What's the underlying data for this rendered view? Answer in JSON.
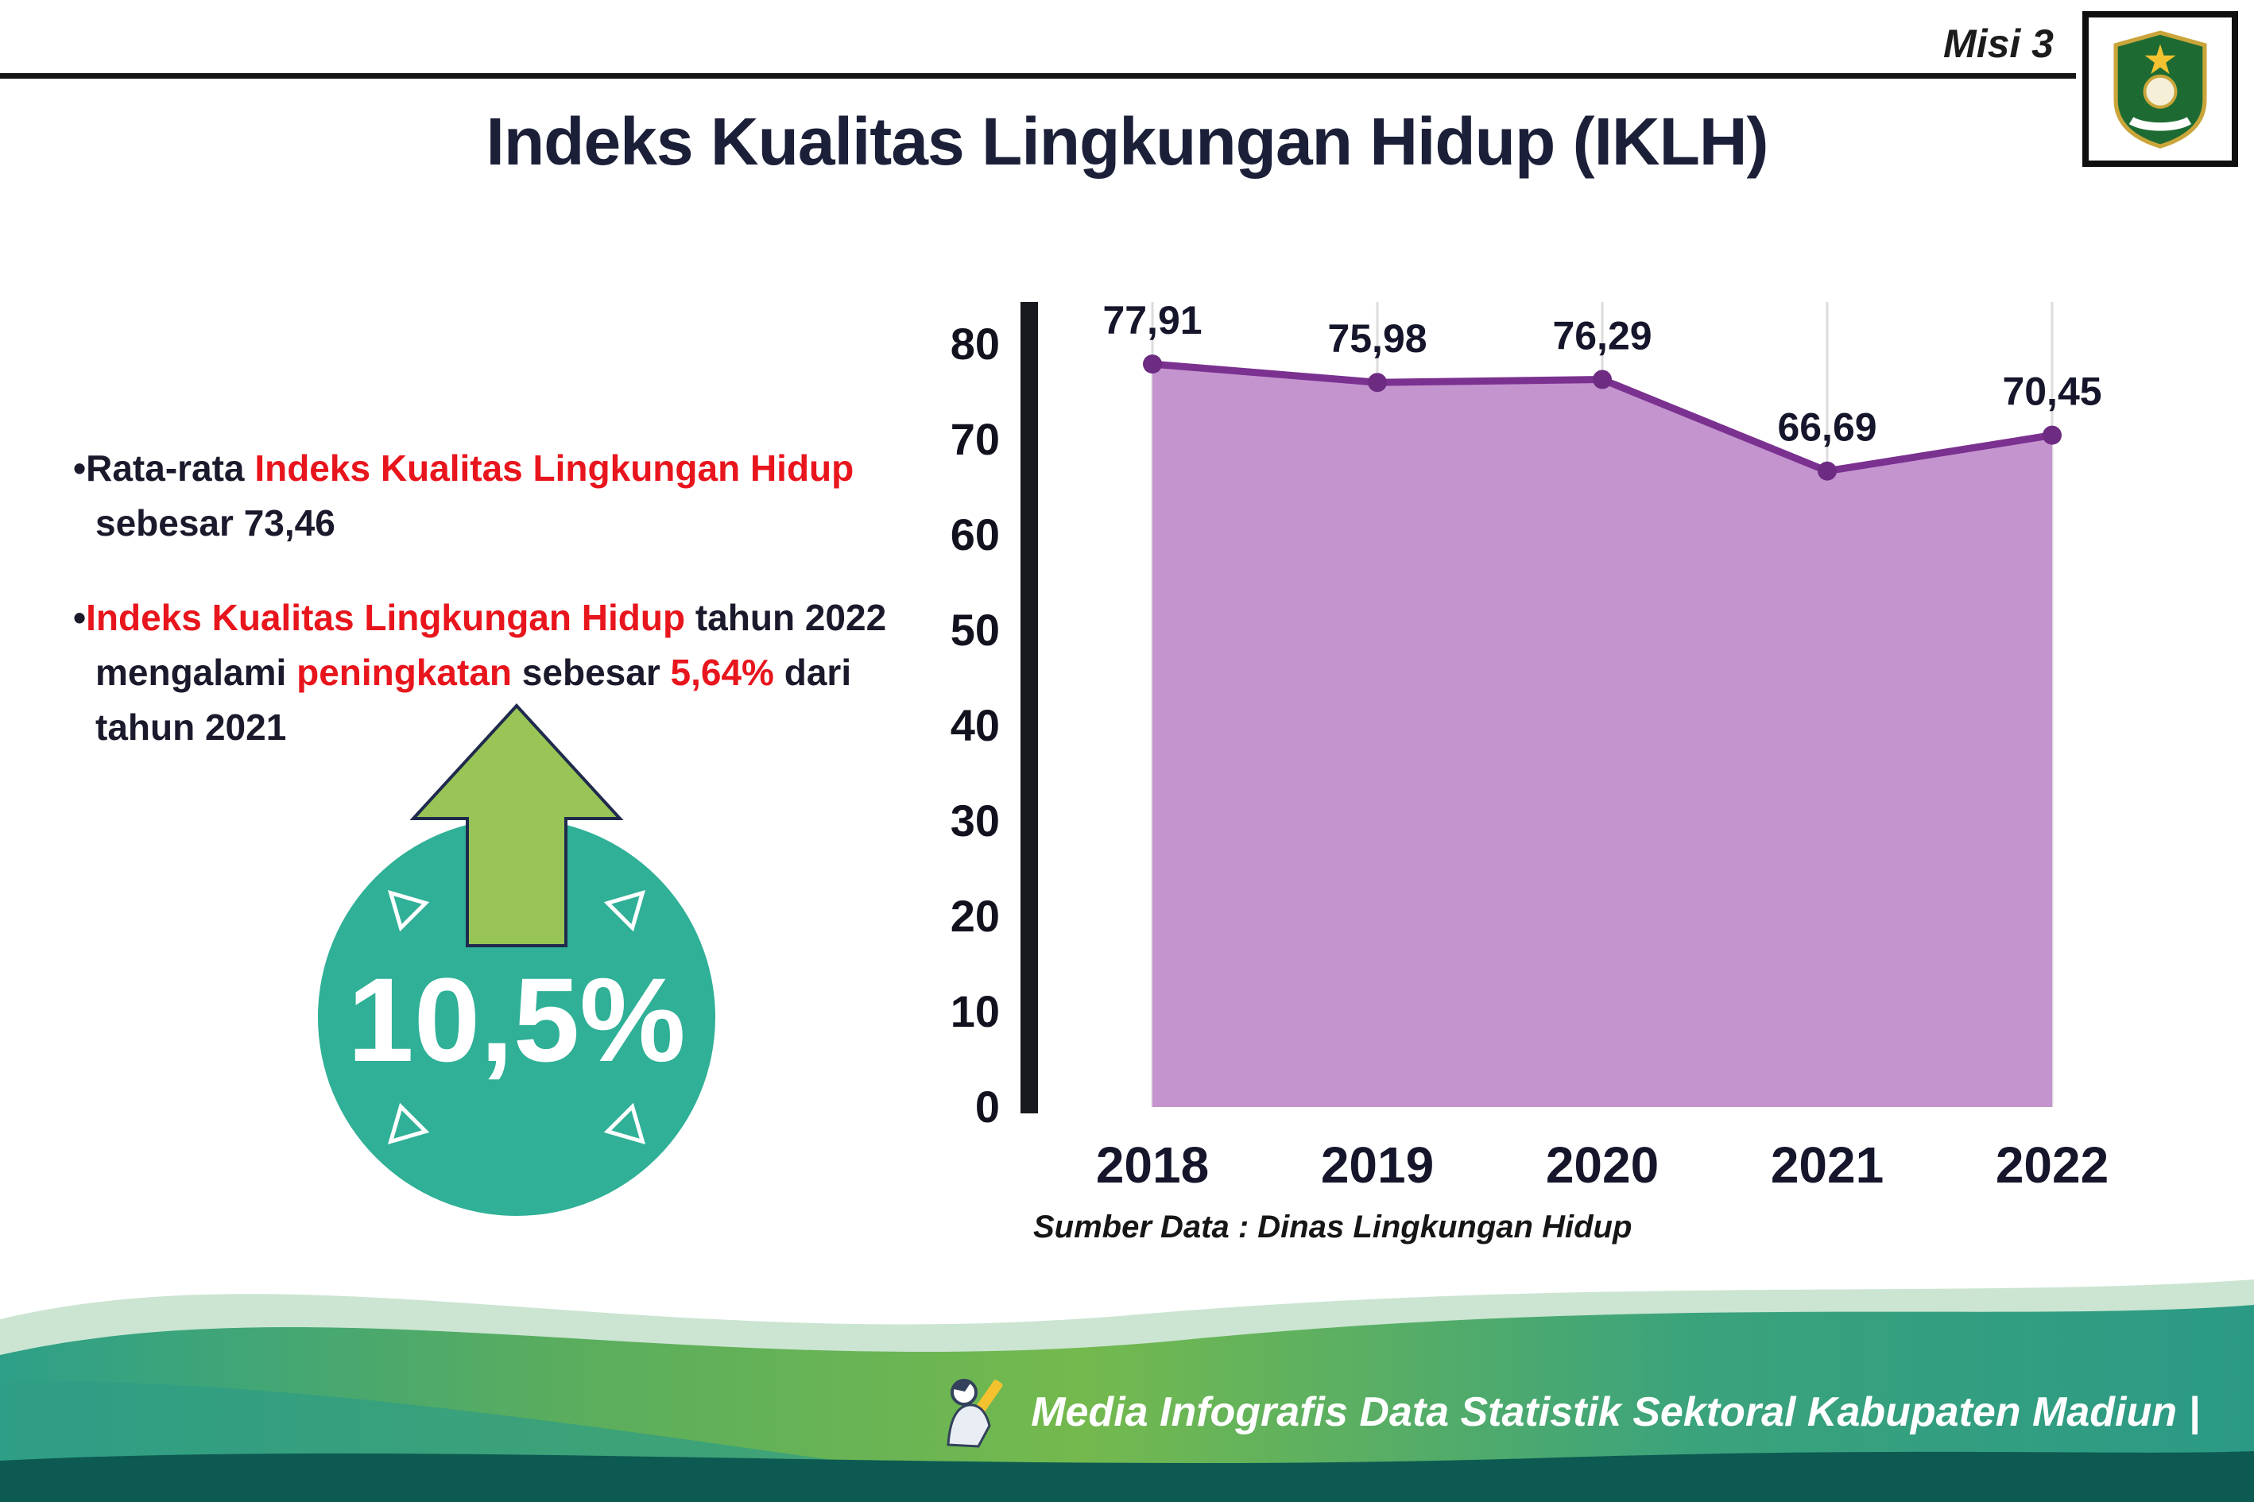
{
  "header": {
    "misi_label": "Misi 3",
    "logo_name": "Kabupaten Madiun"
  },
  "title": "Indeks Kualitas Lingkungan Hidup (IKLH)",
  "bullets": {
    "dot": "•",
    "b1": [
      "Rata-rata ",
      "Indeks Kualitas Lingkungan Hidup",
      " sebesar 73,46"
    ],
    "b2": [
      "Indeks Kualitas Lingkungan Hidup",
      " tahun 2022 mengalami ",
      "peningkatan",
      " sebesar ",
      "5,64%",
      " dari tahun 2021"
    ]
  },
  "badge": {
    "value": "10,5%"
  },
  "colors": {
    "accent_red": "#e8151d",
    "badge_teal": "#2fb097",
    "arrow_green": "#98c556",
    "footer_dark_teal": "#0d5a52"
  },
  "chart_data": {
    "type": "area",
    "title": "",
    "categories": [
      "2018",
      "2019",
      "2020",
      "2021",
      "2022"
    ],
    "values": [
      77.91,
      75.98,
      76.29,
      66.69,
      70.45
    ],
    "value_labels": [
      "77,91",
      "75,98",
      "76,29",
      "66,69",
      "70,45"
    ],
    "ylim": [
      0,
      80
    ],
    "yticks": [
      0,
      10,
      20,
      30,
      40,
      50,
      60,
      70,
      80
    ],
    "grid": "vertical-light",
    "legend": "none",
    "xlabel": "",
    "ylabel": "",
    "line_color": "#7b3190",
    "point_color": "#6e2b82",
    "fill_color": "#c494cf",
    "source_note": "Sumber Data : Dinas Lingkungan Hidup"
  },
  "footer": {
    "credit": "Media Infografis Data Statistik Sektoral Kabupaten Madiun |"
  }
}
